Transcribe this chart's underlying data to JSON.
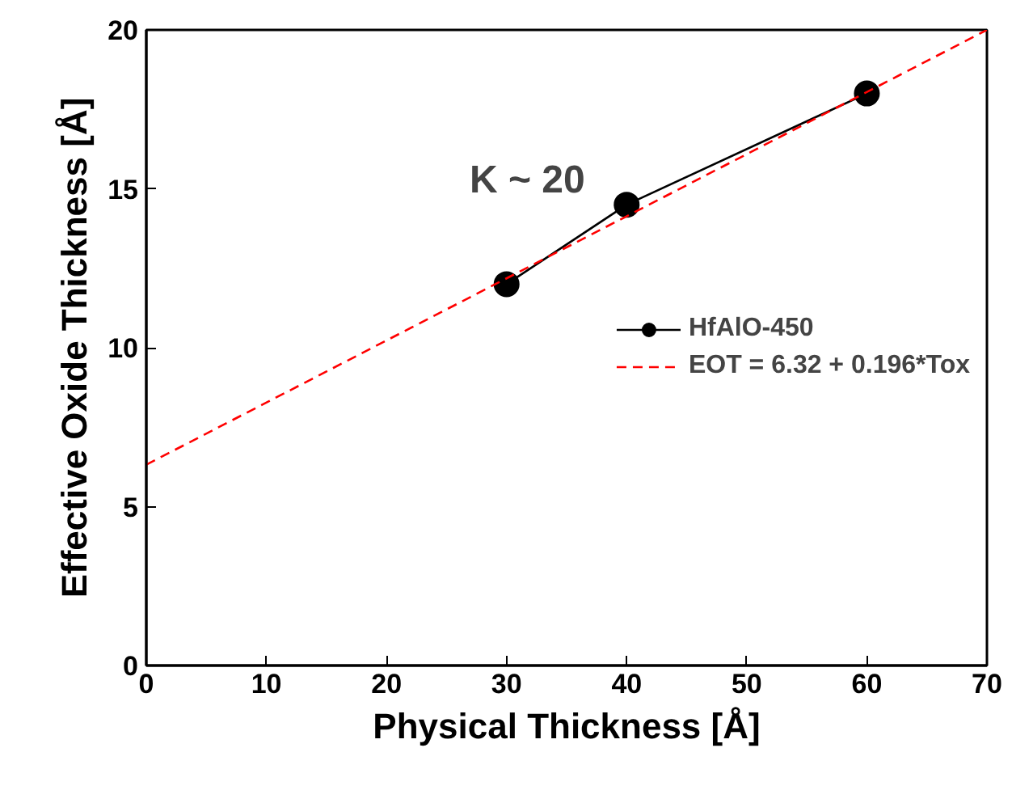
{
  "chart_data": {
    "type": "line",
    "xlabel": "Physical Thickness [Å]",
    "ylabel": "Effective Oxide Thickness [Å]",
    "xlim": [
      0,
      70
    ],
    "ylim": [
      0,
      20
    ],
    "xticks": [
      0,
      10,
      20,
      30,
      40,
      50,
      60,
      70
    ],
    "yticks": [
      0,
      5,
      10,
      15,
      20
    ],
    "grid": false,
    "legend": "center right",
    "series": [
      {
        "name": "HfAlO-450",
        "color": "#000000",
        "marker": "circle",
        "line_style": "solid",
        "x": [
          30,
          40,
          60
        ],
        "values": [
          12,
          14.5,
          18
        ]
      },
      {
        "name": "EOT = 6.32 + 0.196*Tox",
        "color": "#ff0000",
        "marker": "none",
        "line_style": "dashed",
        "x": [
          0,
          70
        ],
        "values": [
          6.32,
          20
        ]
      }
    ],
    "annotations": [
      "K ~ 20"
    ]
  }
}
